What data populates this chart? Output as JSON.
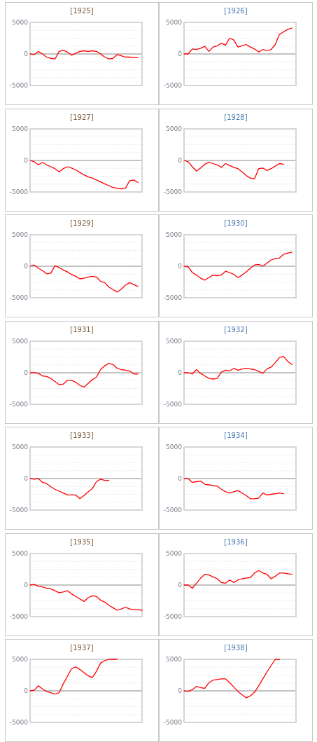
{
  "chart_data": [
    {
      "type": "line",
      "title": "[1925]",
      "categories": [
        null,
        null,
        null,
        null,
        null,
        null,
        null,
        null,
        null,
        null,
        null,
        null,
        null,
        null,
        null,
        null,
        null,
        null,
        null,
        null,
        null,
        null,
        null,
        null,
        null,
        null,
        null,
        null
      ],
      "series": [
        {
          "color": "#ff0000",
          "values": [
            0,
            -100,
            400,
            0,
            -500,
            -700,
            -800,
            400,
            600,
            300,
            -200,
            100,
            400,
            500,
            400,
            500,
            400,
            0,
            -500,
            -800,
            -700,
            -100,
            -300,
            -500,
            -500,
            -600,
            -600,
            null
          ]
        }
      ],
      "ylim": [
        -5000,
        5000
      ],
      "yticks": [
        -5000,
        {
          "value": -3750,
          "label": null
        },
        {
          "value": -2500,
          "label": null
        },
        {
          "value": -1250,
          "label": null
        },
        0,
        {
          "value": 1250,
          "label": null
        },
        {
          "value": 2500,
          "label": null
        },
        {
          "value": 3750,
          "label": null
        },
        5000
      ],
      "grid": "y"
    },
    {
      "type": "line",
      "title": "[1926]",
      "categories": [
        null,
        null,
        null,
        null,
        null,
        null,
        null,
        null,
        null,
        null,
        null,
        null,
        null,
        null,
        null,
        null,
        null,
        null,
        null,
        null,
        null,
        null,
        null,
        null,
        null,
        null,
        null,
        null
      ],
      "series": [
        {
          "color": "#ff0000",
          "values": [
            0,
            0,
            800,
            700,
            900,
            1200,
            400,
            1100,
            1300,
            1700,
            1400,
            2500,
            2200,
            1100,
            1300,
            1500,
            1100,
            800,
            300,
            700,
            500,
            700,
            1500,
            3100,
            3500,
            3900,
            4100,
            null
          ]
        }
      ],
      "ylim": [
        -5000,
        5000
      ],
      "yticks": [
        -5000,
        {
          "value": -3750,
          "label": null
        },
        {
          "value": -2500,
          "label": null
        },
        {
          "value": -1250,
          "label": null
        },
        0,
        {
          "value": 1250,
          "label": null
        },
        {
          "value": 2500,
          "label": null
        },
        {
          "value": 3750,
          "label": null
        },
        5000
      ],
      "grid": "y"
    },
    {
      "type": "line",
      "title": "[1927]",
      "categories": [
        null,
        null,
        null,
        null,
        null,
        null,
        null,
        null,
        null,
        null,
        null,
        null,
        null,
        null,
        null,
        null,
        null,
        null,
        null,
        null,
        null,
        null,
        null,
        null,
        null,
        null,
        null,
        null
      ],
      "series": [
        {
          "color": "#ff0000",
          "values": [
            0,
            -200,
            -700,
            -300,
            -700,
            -1000,
            -1300,
            -1800,
            -1300,
            -1000,
            -1200,
            -1500,
            -1900,
            -2300,
            -2600,
            -2800,
            -3100,
            -3400,
            -3700,
            -4000,
            -4300,
            -4400,
            -4500,
            -4400,
            -3200,
            -3100,
            -3500,
            null
          ]
        }
      ],
      "ylim": [
        -5000,
        5000
      ],
      "yticks": [
        -5000,
        {
          "value": -3750,
          "label": null
        },
        {
          "value": -2500,
          "label": null
        },
        {
          "value": -1250,
          "label": null
        },
        0,
        {
          "value": 1250,
          "label": null
        },
        {
          "value": 2500,
          "label": null
        },
        {
          "value": 3750,
          "label": null
        },
        5000
      ],
      "grid": "y"
    },
    {
      "type": "line",
      "title": "[1928]",
      "categories": [
        null,
        null,
        null,
        null,
        null,
        null,
        null,
        null,
        null,
        null,
        null,
        null,
        null,
        null,
        null,
        null,
        null,
        null,
        null,
        null,
        null,
        null,
        null,
        null,
        null,
        null,
        null,
        null
      ],
      "series": [
        {
          "color": "#ff0000",
          "values": [
            0,
            -200,
            -1000,
            -1700,
            -1200,
            -600,
            -300,
            -500,
            -700,
            -1100,
            -500,
            -800,
            -1100,
            -1300,
            -1800,
            -2400,
            -2800,
            -2900,
            -1300,
            -1200,
            -1600,
            -1300,
            -900,
            -500,
            -600,
            null,
            null,
            null
          ]
        }
      ],
      "ylim": [
        -5000,
        5000
      ],
      "yticks": [
        -5000,
        {
          "value": -3750,
          "label": null
        },
        {
          "value": -2500,
          "label": null
        },
        {
          "value": -1250,
          "label": null
        },
        0,
        {
          "value": 1250,
          "label": null
        },
        {
          "value": 2500,
          "label": null
        },
        {
          "value": 3750,
          "label": null
        },
        5000
      ],
      "grid": "y"
    },
    {
      "type": "line",
      "title": "[1929]",
      "categories": [
        null,
        null,
        null,
        null,
        null,
        null,
        null,
        null,
        null,
        null,
        null,
        null,
        null,
        null,
        null,
        null,
        null,
        null,
        null,
        null,
        null,
        null,
        null,
        null,
        null,
        null,
        null,
        null
      ],
      "series": [
        {
          "color": "#ff0000",
          "values": [
            0,
            200,
            -300,
            -700,
            -1200,
            -1100,
            100,
            -200,
            -600,
            -900,
            -1300,
            -1600,
            -2000,
            -1900,
            -1700,
            -1600,
            -1700,
            -2400,
            -2600,
            -3300,
            -3700,
            -4100,
            -3600,
            -3000,
            -2600,
            -2900,
            -3200,
            null
          ]
        }
      ],
      "ylim": [
        -5000,
        5000
      ],
      "yticks": [
        -5000,
        {
          "value": -3750,
          "label": null
        },
        {
          "value": -2500,
          "label": null
        },
        {
          "value": -1250,
          "label": null
        },
        0,
        {
          "value": 1250,
          "label": null
        },
        {
          "value": 2500,
          "label": null
        },
        {
          "value": 3750,
          "label": null
        },
        5000
      ],
      "grid": "y"
    },
    {
      "type": "line",
      "title": "[1930]",
      "categories": [
        null,
        null,
        null,
        null,
        null,
        null,
        null,
        null,
        null,
        null,
        null,
        null,
        null,
        null,
        null,
        null,
        null,
        null,
        null,
        null,
        null,
        null,
        null,
        null,
        null,
        null,
        null,
        null
      ],
      "series": [
        {
          "color": "#ff0000",
          "values": [
            0,
            -100,
            -1000,
            -1400,
            -1900,
            -2200,
            -1800,
            -1400,
            -1500,
            -1400,
            -800,
            -1000,
            -1300,
            -1800,
            -1400,
            -900,
            -300,
            200,
            300,
            0,
            500,
            1000,
            1200,
            1300,
            1900,
            2100,
            2200,
            null
          ]
        }
      ],
      "ylim": [
        -5000,
        5000
      ],
      "yticks": [
        -5000,
        {
          "value": -3750,
          "label": null
        },
        {
          "value": -2500,
          "label": null
        },
        {
          "value": -1250,
          "label": null
        },
        0,
        {
          "value": 1250,
          "label": null
        },
        {
          "value": 2500,
          "label": null
        },
        {
          "value": 3750,
          "label": null
        },
        5000
      ],
      "grid": "y"
    },
    {
      "type": "line",
      "title": "[1931]",
      "categories": [
        null,
        null,
        null,
        null,
        null,
        null,
        null,
        null,
        null,
        null,
        null,
        null,
        null,
        null,
        null,
        null,
        null,
        null,
        null,
        null,
        null,
        null,
        null,
        null,
        null,
        null,
        null,
        null
      ],
      "series": [
        {
          "color": "#ff0000",
          "values": [
            0,
            0,
            -100,
            -500,
            -600,
            -900,
            -1400,
            -1900,
            -1800,
            -1200,
            -1200,
            -1500,
            -2000,
            -2300,
            -1700,
            -1100,
            -700,
            500,
            1100,
            1500,
            1300,
            700,
            500,
            400,
            300,
            -200,
            -200,
            null
          ]
        }
      ],
      "ylim": [
        -5000,
        5000
      ],
      "yticks": [
        -5000,
        {
          "value": -3750,
          "label": null
        },
        {
          "value": -2500,
          "label": null
        },
        {
          "value": -1250,
          "label": null
        },
        0,
        {
          "value": 1250,
          "label": null
        },
        {
          "value": 2500,
          "label": null
        },
        {
          "value": 3750,
          "label": null
        },
        5000
      ],
      "grid": "y"
    },
    {
      "type": "line",
      "title": "[1932]",
      "categories": [
        null,
        null,
        null,
        null,
        null,
        null,
        null,
        null,
        null,
        null,
        null,
        null,
        null,
        null,
        null,
        null,
        null,
        null,
        null,
        null,
        null,
        null,
        null,
        null,
        null,
        null,
        null,
        null
      ],
      "series": [
        {
          "color": "#ff0000",
          "values": [
            0,
            0,
            -200,
            500,
            -100,
            -500,
            -900,
            -1000,
            -900,
            100,
            400,
            300,
            700,
            400,
            600,
            700,
            600,
            500,
            200,
            -100,
            600,
            900,
            1600,
            2400,
            2600,
            1800,
            1300,
            null
          ]
        }
      ],
      "ylim": [
        -5000,
        5000
      ],
      "yticks": [
        -5000,
        {
          "value": -3750,
          "label": null
        },
        {
          "value": -2500,
          "label": null
        },
        {
          "value": -1250,
          "label": null
        },
        0,
        {
          "value": 1250,
          "label": null
        },
        {
          "value": 2500,
          "label": null
        },
        {
          "value": 3750,
          "label": null
        },
        5000
      ],
      "grid": "y"
    },
    {
      "type": "line",
      "title": "[1933]",
      "categories": [
        null,
        null,
        null,
        null,
        null,
        null,
        null,
        null,
        null,
        null,
        null,
        null,
        null,
        null,
        null,
        null,
        null,
        null,
        null,
        null,
        null,
        null,
        null,
        null,
        null,
        null,
        null,
        null
      ],
      "series": [
        {
          "color": "#ff0000",
          "values": [
            0,
            -100,
            0,
            -600,
            -800,
            -1300,
            -1700,
            -2000,
            -2300,
            -2600,
            -2600,
            -2600,
            -3200,
            -2700,
            -2100,
            -1600,
            -500,
            -100,
            -300,
            -300,
            null,
            null,
            null,
            null,
            null,
            null,
            null,
            null
          ]
        }
      ],
      "ylim": [
        -5000,
        5000
      ],
      "yticks": [
        -5000,
        {
          "value": -3750,
          "label": null
        },
        {
          "value": -2500,
          "label": null
        },
        {
          "value": -1250,
          "label": null
        },
        0,
        {
          "value": 1250,
          "label": null
        },
        {
          "value": 2500,
          "label": null
        },
        {
          "value": 3750,
          "label": null
        },
        5000
      ],
      "grid": "y"
    },
    {
      "type": "line",
      "title": "[1934]",
      "categories": [
        null,
        null,
        null,
        null,
        null,
        null,
        null,
        null,
        null,
        null,
        null,
        null,
        null,
        null,
        null,
        null,
        null,
        null,
        null,
        null,
        null,
        null,
        null,
        null,
        null,
        null,
        null,
        null
      ],
      "series": [
        {
          "color": "#ff0000",
          "values": [
            0,
            0,
            -600,
            -500,
            -400,
            -900,
            -1000,
            -1100,
            -1200,
            -1700,
            -2100,
            -2300,
            -2100,
            -1900,
            -2300,
            -2700,
            -3200,
            -3200,
            -3100,
            -2300,
            -2600,
            -2500,
            -2400,
            -2300,
            -2400,
            null,
            null,
            null
          ]
        }
      ],
      "ylim": [
        -5000,
        5000
      ],
      "yticks": [
        -5000,
        {
          "value": -3750,
          "label": null
        },
        {
          "value": -2500,
          "label": null
        },
        {
          "value": -1250,
          "label": null
        },
        0,
        {
          "value": 1250,
          "label": null
        },
        {
          "value": 2500,
          "label": null
        },
        {
          "value": 3750,
          "label": null
        },
        5000
      ],
      "grid": "y"
    },
    {
      "type": "line",
      "title": "[1935]",
      "categories": [
        null,
        null,
        null,
        null,
        null,
        null,
        null,
        null,
        null,
        null,
        null,
        null,
        null,
        null,
        null,
        null,
        null,
        null,
        null,
        null,
        null,
        null,
        null,
        null,
        null,
        null,
        null,
        null
      ],
      "series": [
        {
          "color": "#ff0000",
          "values": [
            0,
            100,
            -200,
            -300,
            -500,
            -600,
            -900,
            -1200,
            -1100,
            -900,
            -1400,
            -1800,
            -2200,
            -2600,
            -2000,
            -1700,
            -1800,
            -2400,
            -2700,
            -3200,
            -3600,
            -4000,
            -3800,
            -3500,
            -3800,
            -3900,
            -3900,
            -4000
          ]
        }
      ],
      "ylim": [
        -5000,
        5000
      ],
      "yticks": [
        -5000,
        {
          "value": -3750,
          "label": null
        },
        {
          "value": -2500,
          "label": null
        },
        {
          "value": -1250,
          "label": null
        },
        0,
        {
          "value": 1250,
          "label": null
        },
        {
          "value": 2500,
          "label": null
        },
        {
          "value": 3750,
          "label": null
        },
        5000
      ],
      "grid": "y"
    },
    {
      "type": "line",
      "title": "[1936]",
      "categories": [
        null,
        null,
        null,
        null,
        null,
        null,
        null,
        null,
        null,
        null,
        null,
        null,
        null,
        null,
        null,
        null,
        null,
        null,
        null,
        null,
        null,
        null,
        null,
        null,
        null,
        null,
        null,
        null
      ],
      "series": [
        {
          "color": "#ff0000",
          "values": [
            0,
            0,
            -500,
            300,
            1100,
            1700,
            1600,
            1300,
            1000,
            400,
            300,
            800,
            400,
            800,
            1000,
            1100,
            1200,
            1900,
            2300,
            1900,
            1700,
            1000,
            1400,
            1900,
            1900,
            1800,
            1700,
            null
          ]
        }
      ],
      "ylim": [
        -5000,
        5000
      ],
      "yticks": [
        -5000,
        {
          "value": -3750,
          "label": null
        },
        {
          "value": -2500,
          "label": null
        },
        {
          "value": -1250,
          "label": null
        },
        0,
        {
          "value": 1250,
          "label": null
        },
        {
          "value": 2500,
          "label": null
        },
        {
          "value": 3750,
          "label": null
        },
        5000
      ],
      "grid": "y"
    },
    {
      "type": "line",
      "title": "[1937]",
      "categories": [
        null,
        null,
        null,
        null,
        null,
        null,
        null,
        null,
        null,
        null,
        null,
        null,
        null,
        null,
        null,
        null,
        null,
        null,
        null,
        null,
        null,
        null,
        null,
        null,
        null,
        null,
        null,
        null
      ],
      "series": [
        {
          "color": "#ff0000",
          "values": [
            0,
            100,
            800,
            300,
            -100,
            -300,
            -500,
            -300,
            1100,
            2300,
            3500,
            3800,
            3400,
            2900,
            2400,
            2100,
            3100,
            4400,
            4800,
            5000,
            5000,
            5000,
            null,
            null,
            null,
            null,
            null,
            null
          ]
        }
      ],
      "ylim": [
        -5000,
        5000
      ],
      "yticks": [
        -5000,
        {
          "value": -3750,
          "label": null
        },
        {
          "value": -2500,
          "label": null
        },
        {
          "value": -1250,
          "label": null
        },
        0,
        {
          "value": 1250,
          "label": null
        },
        {
          "value": 2500,
          "label": null
        },
        {
          "value": 3750,
          "label": null
        },
        5000
      ],
      "grid": "y"
    },
    {
      "type": "line",
      "title": "[1938]",
      "categories": [
        null,
        null,
        null,
        null,
        null,
        null,
        null,
        null,
        null,
        null,
        null,
        null,
        null,
        null,
        null,
        null,
        null,
        null,
        null,
        null,
        null,
        null,
        null,
        null,
        null,
        null,
        null,
        null
      ],
      "series": [
        {
          "color": "#ff0000",
          "values": [
            0,
            -100,
            200,
            700,
            500,
            400,
            1300,
            1700,
            1800,
            1900,
            1900,
            1300,
            600,
            -100,
            -600,
            -1100,
            -800,
            -200,
            800,
            1900,
            3000,
            4000,
            5000,
            5000,
            null,
            null,
            null,
            null
          ]
        }
      ],
      "ylim": [
        -5000,
        5000
      ],
      "yticks": [
        -5000,
        {
          "value": -3750,
          "label": null
        },
        {
          "value": -2500,
          "label": null
        },
        {
          "value": -1250,
          "label": null
        },
        0,
        {
          "value": 1250,
          "label": null
        },
        {
          "value": 2500,
          "label": null
        },
        {
          "value": 3750,
          "label": null
        },
        5000
      ],
      "grid": "y"
    }
  ]
}
